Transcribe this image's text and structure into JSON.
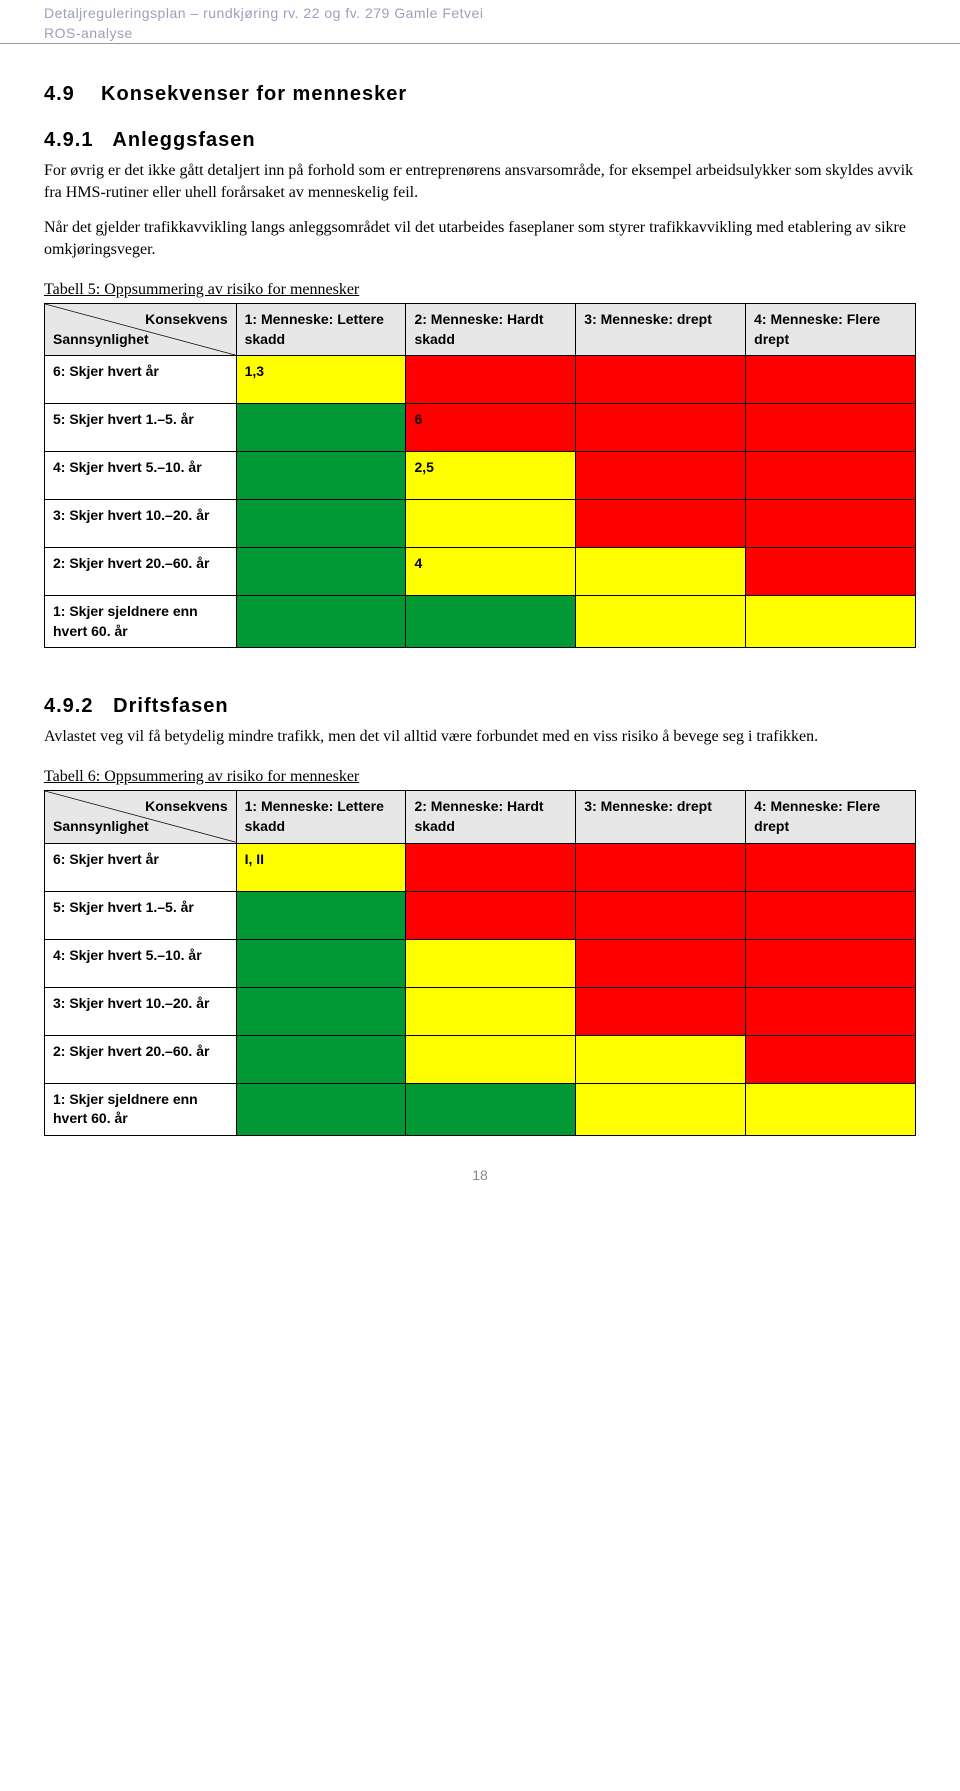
{
  "header": {
    "line1": "Detaljreguleringsplan – rundkjøring rv. 22 og fv. 279 Gamle Fetvei",
    "line2": "ROS-analyse"
  },
  "section49": {
    "number": "4.9",
    "title": "Konsekvenser for mennesker"
  },
  "section491": {
    "number": "4.9.1",
    "title": "Anleggsfasen",
    "para1": "For øvrig er det ikke gått detaljert inn på forhold som er entreprenørens ansvarsområde, for eksempel arbeidsulykker som skyldes avvik fra HMS-rutiner eller uhell forårsaket av menneskelig feil.",
    "para2": "Når det gjelder trafikkavvikling langs anleggsområdet vil det utarbeides faseplaner som styrer trafikkavvikling med etablering av sikre omkjøringsveger."
  },
  "section492": {
    "number": "4.9.2",
    "title": "Driftsfasen",
    "para1": "Avlastet veg vil få betydelig mindre trafikk, men det vil alltid være forbundet med en viss risiko å bevege seg i trafikken."
  },
  "colors": {
    "green": "#009933",
    "yellow": "#ffff00",
    "red": "#ff0000",
    "header_bg": "#e7e7e7",
    "border": "#000000"
  },
  "table5": {
    "caption": "Tabell 5: Oppsummering av risiko for mennesker",
    "diag_top": "Konsekvens",
    "diag_bottom": "Sannsynlighet",
    "columns": [
      "1: Menneske: Lettere skadd",
      "2: Menneske: Hardt skadd",
      "3: Menneske: drept",
      "4: Menneske: Flere drept"
    ],
    "rows": [
      {
        "label": "6: Skjer hvert år",
        "cells": [
          {
            "v": "1,3",
            "c": "yellow"
          },
          {
            "v": "",
            "c": "red"
          },
          {
            "v": "",
            "c": "red"
          },
          {
            "v": "",
            "c": "red"
          }
        ]
      },
      {
        "label": "5: Skjer hvert 1.–5. år",
        "cells": [
          {
            "v": "",
            "c": "green"
          },
          {
            "v": "6",
            "c": "red"
          },
          {
            "v": "",
            "c": "red"
          },
          {
            "v": "",
            "c": "red"
          }
        ]
      },
      {
        "label": "4: Skjer hvert 5.–10. år",
        "cells": [
          {
            "v": "",
            "c": "green"
          },
          {
            "v": "2,5",
            "c": "yellow"
          },
          {
            "v": "",
            "c": "red"
          },
          {
            "v": "",
            "c": "red"
          }
        ]
      },
      {
        "label": "3: Skjer hvert 10.–20. år",
        "cells": [
          {
            "v": "",
            "c": "green"
          },
          {
            "v": "",
            "c": "yellow"
          },
          {
            "v": "",
            "c": "red"
          },
          {
            "v": "",
            "c": "red"
          }
        ]
      },
      {
        "label": "2: Skjer hvert 20.–60. år",
        "cells": [
          {
            "v": "",
            "c": "green"
          },
          {
            "v": "4",
            "c": "yellow"
          },
          {
            "v": "",
            "c": "yellow"
          },
          {
            "v": "",
            "c": "red"
          }
        ]
      },
      {
        "label": "1: Skjer sjeldnere enn hvert 60. år",
        "cells": [
          {
            "v": "",
            "c": "green"
          },
          {
            "v": "",
            "c": "green"
          },
          {
            "v": "",
            "c": "yellow"
          },
          {
            "v": "",
            "c": "yellow"
          }
        ]
      }
    ]
  },
  "table6": {
    "caption": "Tabell 6: Oppsummering av risiko for mennesker",
    "diag_top": "Konsekvens",
    "diag_bottom": "Sannsynlighet",
    "columns": [
      "1: Menneske: Lettere skadd",
      "2: Menneske: Hardt skadd",
      "3: Menneske: drept",
      "4: Menneske: Flere drept"
    ],
    "rows": [
      {
        "label": "6: Skjer hvert år",
        "cells": [
          {
            "v": "I, II",
            "c": "yellow"
          },
          {
            "v": "",
            "c": "red"
          },
          {
            "v": "",
            "c": "red"
          },
          {
            "v": "",
            "c": "red"
          }
        ]
      },
      {
        "label": "5: Skjer hvert 1.–5. år",
        "cells": [
          {
            "v": "",
            "c": "green"
          },
          {
            "v": "",
            "c": "red"
          },
          {
            "v": "",
            "c": "red"
          },
          {
            "v": "",
            "c": "red"
          }
        ]
      },
      {
        "label": "4: Skjer hvert 5.–10. år",
        "cells": [
          {
            "v": "",
            "c": "green"
          },
          {
            "v": "",
            "c": "yellow"
          },
          {
            "v": "",
            "c": "red"
          },
          {
            "v": "",
            "c": "red"
          }
        ]
      },
      {
        "label": "3: Skjer hvert 10.–20. år",
        "cells": [
          {
            "v": "",
            "c": "green"
          },
          {
            "v": "",
            "c": "yellow"
          },
          {
            "v": "",
            "c": "red"
          },
          {
            "v": "",
            "c": "red"
          }
        ]
      },
      {
        "label": "2: Skjer hvert 20.–60. år",
        "cells": [
          {
            "v": "",
            "c": "green"
          },
          {
            "v": "",
            "c": "yellow"
          },
          {
            "v": "",
            "c": "yellow"
          },
          {
            "v": "",
            "c": "red"
          }
        ]
      },
      {
        "label": "1: Skjer sjeldnere enn hvert 60. år",
        "cells": [
          {
            "v": "",
            "c": "green"
          },
          {
            "v": "",
            "c": "green"
          },
          {
            "v": "",
            "c": "yellow"
          },
          {
            "v": "",
            "c": "yellow"
          }
        ]
      }
    ]
  },
  "page_number": "18"
}
